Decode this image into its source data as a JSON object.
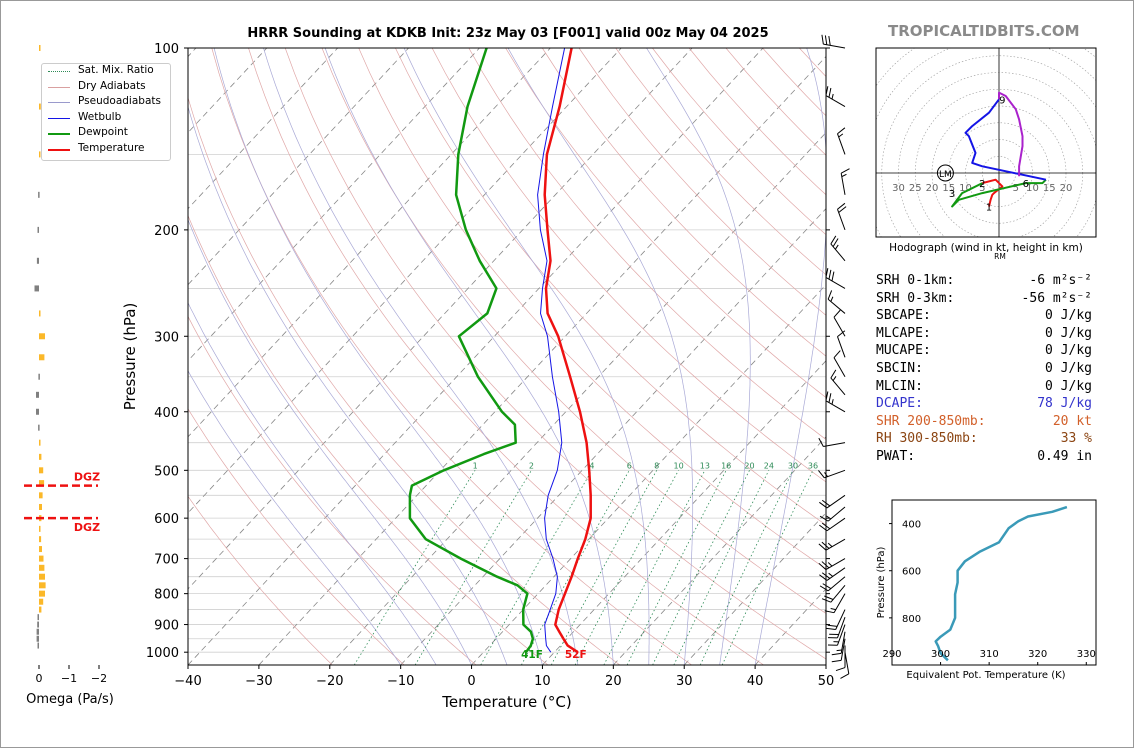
{
  "title": "HRRR Sounding at KDKB Init: 23z May 03 [F001] valid 00z May 04 2025",
  "brand": "TROPICALTIDBITS.COM",
  "legend": [
    {
      "label": "Sat. Mix. Ratio",
      "color": "#2e8b57",
      "style": "dotted"
    },
    {
      "label": "Dry Adiabats",
      "color": "#d9a0a0",
      "style": "solid"
    },
    {
      "label": "Pseudoadiabats",
      "color": "#9a9acc",
      "style": "solid"
    },
    {
      "label": "Wetbulb",
      "color": "#1414e6",
      "style": "solid"
    },
    {
      "label": "Dewpoint",
      "color": "#119911",
      "style": "solid"
    },
    {
      "label": "Temperature",
      "color": "#ee1111",
      "style": "solid"
    }
  ],
  "chart_data": [
    {
      "type": "line",
      "name": "skew-t",
      "xlabel": "Temperature (°C)",
      "ylabel": "Pressure (hPa)",
      "xlim": [
        -40,
        50
      ],
      "ylim": [
        1050,
        100
      ],
      "y_scale": "log",
      "x_ticks": [
        -40,
        -30,
        -20,
        -10,
        0,
        10,
        20,
        30,
        40,
        50
      ],
      "x_tick_labels": [
        "−40",
        "−30",
        "−20",
        "−10",
        "0",
        "10",
        "20",
        "30",
        "40",
        "50"
      ],
      "y_ticks": [
        1000,
        900,
        800,
        700,
        600,
        500,
        400,
        300,
        200,
        100
      ],
      "mixing_ratio_labels": [
        "1",
        "2",
        "4",
        "6",
        "8",
        "10",
        "13",
        "16",
        "20",
        "24",
        "30",
        "36"
      ],
      "surface_labels": {
        "dewpoint": "41F",
        "temperature": "52F"
      },
      "series": [
        {
          "name": "Temperature",
          "color": "#ee1111",
          "points": [
            [
              1000,
              13.3
            ],
            [
              975,
              11.0
            ],
            [
              950,
              9.5
            ],
            [
              925,
              8.0
            ],
            [
              900,
              6.5
            ],
            [
              850,
              5.0
            ],
            [
              800,
              3.8
            ],
            [
              750,
              2.5
            ],
            [
              700,
              1.0
            ],
            [
              650,
              -0.5
            ],
            [
              600,
              -2.5
            ],
            [
              550,
              -5.5
            ],
            [
              500,
              -9.0
            ],
            [
              450,
              -13.0
            ],
            [
              400,
              -18.0
            ],
            [
              350,
              -24.0
            ],
            [
              300,
              -31.0
            ],
            [
              275,
              -35.5
            ],
            [
              250,
              -39.0
            ],
            [
              225,
              -42.0
            ],
            [
              200,
              -46.5
            ],
            [
              175,
              -51.5
            ],
            [
              150,
              -56.5
            ],
            [
              125,
              -61.0
            ],
            [
              100,
              -67.0
            ]
          ]
        },
        {
          "name": "Dewpoint",
          "color": "#119911",
          "points": [
            [
              1000,
              6.0
            ],
            [
              975,
              5.8
            ],
            [
              950,
              5.2
            ],
            [
              925,
              4.0
            ],
            [
              900,
              2.0
            ],
            [
              850,
              0.0
            ],
            [
              800,
              -1.5
            ],
            [
              775,
              -4.0
            ],
            [
              750,
              -8.0
            ],
            [
              700,
              -15.5
            ],
            [
              650,
              -23.0
            ],
            [
              600,
              -28.0
            ],
            [
              550,
              -31.0
            ],
            [
              530,
              -32.0
            ],
            [
              500,
              -29.5
            ],
            [
              470,
              -26.0
            ],
            [
              450,
              -23.0
            ],
            [
              420,
              -25.5
            ],
            [
              400,
              -29.0
            ],
            [
              350,
              -37.0
            ],
            [
              300,
              -45.0
            ],
            [
              275,
              -44.0
            ],
            [
              250,
              -46.0
            ],
            [
              225,
              -52.0
            ],
            [
              200,
              -58.0
            ],
            [
              175,
              -64.0
            ],
            [
              150,
              -69.0
            ],
            [
              125,
              -74.0
            ],
            [
              100,
              -79.0
            ]
          ]
        },
        {
          "name": "Wetbulb",
          "color": "#1414e6",
          "points": [
            [
              1000,
              9.5
            ],
            [
              975,
              8.0
            ],
            [
              950,
              7.0
            ],
            [
              900,
              5.0
            ],
            [
              850,
              3.8
            ],
            [
              800,
              2.5
            ],
            [
              750,
              0.5
            ],
            [
              700,
              -2.5
            ],
            [
              650,
              -6.0
            ],
            [
              600,
              -9.0
            ],
            [
              550,
              -11.5
            ],
            [
              500,
              -13.5
            ],
            [
              450,
              -16.5
            ],
            [
              400,
              -21.0
            ],
            [
              350,
              -26.5
            ],
            [
              300,
              -32.5
            ],
            [
              275,
              -36.5
            ],
            [
              250,
              -39.5
            ],
            [
              225,
              -42.5
            ],
            [
              200,
              -47.5
            ],
            [
              175,
              -52.5
            ],
            [
              150,
              -57.0
            ],
            [
              125,
              -62.0
            ],
            [
              100,
              -68.0
            ]
          ]
        }
      ],
      "wind_barbs": [
        {
          "p": 1000,
          "spd": 10,
          "dir": 170
        },
        {
          "p": 975,
          "spd": 10,
          "dir": 180
        },
        {
          "p": 950,
          "spd": 10,
          "dir": 190
        },
        {
          "p": 925,
          "spd": 15,
          "dir": 190
        },
        {
          "p": 900,
          "spd": 15,
          "dir": 200
        },
        {
          "p": 875,
          "spd": 20,
          "dir": 200
        },
        {
          "p": 850,
          "spd": 20,
          "dir": 205
        },
        {
          "p": 800,
          "spd": 15,
          "dir": 210
        },
        {
          "p": 775,
          "spd": 20,
          "dir": 220
        },
        {
          "p": 750,
          "spd": 20,
          "dir": 230
        },
        {
          "p": 725,
          "spd": 25,
          "dir": 235
        },
        {
          "p": 700,
          "spd": 25,
          "dir": 240
        },
        {
          "p": 650,
          "spd": 25,
          "dir": 240
        },
        {
          "p": 600,
          "spd": 20,
          "dir": 235
        },
        {
          "p": 575,
          "spd": 15,
          "dir": 230
        },
        {
          "p": 550,
          "spd": 20,
          "dir": 235
        },
        {
          "p": 500,
          "spd": 15,
          "dir": 250
        },
        {
          "p": 450,
          "spd": 10,
          "dir": 260
        },
        {
          "p": 400,
          "spd": 25,
          "dir": 300
        },
        {
          "p": 375,
          "spd": 15,
          "dir": 320
        },
        {
          "p": 350,
          "spd": 10,
          "dir": 330
        },
        {
          "p": 325,
          "spd": 10,
          "dir": 340
        },
        {
          "p": 300,
          "spd": 10,
          "dir": 330
        },
        {
          "p": 275,
          "spd": 15,
          "dir": 310
        },
        {
          "p": 250,
          "spd": 30,
          "dir": 300
        },
        {
          "p": 225,
          "spd": 25,
          "dir": 320
        },
        {
          "p": 200,
          "spd": 20,
          "dir": 340
        },
        {
          "p": 175,
          "spd": 15,
          "dir": 350
        },
        {
          "p": 150,
          "spd": 15,
          "dir": 340
        },
        {
          "p": 125,
          "spd": 25,
          "dir": 300
        },
        {
          "p": 100,
          "spd": 30,
          "dir": 280
        }
      ]
    },
    {
      "type": "line",
      "name": "hodograph",
      "xlabel": "Hodograph (wind in kt, height in km)",
      "ring_labels_left": [
        "30",
        "25",
        "20",
        "15",
        "10",
        "5"
      ],
      "ring_labels_right": [
        "5",
        "10",
        "15",
        "20"
      ],
      "height_labels": [
        "1",
        "2",
        "3",
        "6",
        "9"
      ],
      "storm_motion_labels": [
        "LM",
        "RM"
      ],
      "series": [
        {
          "name": "0-1km",
          "color": "#ee1111",
          "points": [
            [
              -3,
              -10
            ],
            [
              -2.5,
              -8
            ],
            [
              -2,
              -6.5
            ],
            [
              -1.5,
              -6
            ],
            [
              1,
              -4
            ],
            [
              -1,
              -2
            ],
            [
              -5,
              -3
            ]
          ]
        },
        {
          "name": "1-3km",
          "color": "#119911",
          "points": [
            [
              -5,
              -3
            ],
            [
              -9,
              -5
            ],
            [
              -11,
              -6
            ],
            [
              -14,
              -10
            ],
            [
              -12,
              -8
            ],
            [
              -5,
              -6
            ],
            [
              8,
              -3
            ],
            [
              13,
              -3
            ],
            [
              14,
              -2
            ]
          ]
        },
        {
          "name": "3-6km",
          "color": "#1414e6",
          "points": [
            [
              14,
              -2
            ],
            [
              -5,
              2
            ],
            [
              -8,
              3
            ],
            [
              -7,
              6
            ],
            [
              -9,
              11
            ],
            [
              -10,
              12
            ],
            [
              -8,
              14
            ],
            [
              -3,
              18
            ],
            [
              0,
              22
            ]
          ]
        },
        {
          "name": "6-9km",
          "color": "#aa22cc",
          "points": [
            [
              0,
              22
            ],
            [
              0,
              24
            ],
            [
              2,
              23
            ],
            [
              5,
              19
            ],
            [
              6,
              16
            ],
            [
              7,
              11
            ],
            [
              7,
              8
            ],
            [
              6,
              2
            ],
            [
              6,
              -1
            ]
          ]
        }
      ]
    },
    {
      "type": "line",
      "name": "theta-e",
      "xlabel": "Equivalent Pot. Temperature (K)",
      "ylabel": "Pressure (hPa)",
      "xlim": [
        290,
        332
      ],
      "ylim": [
        1000,
        300
      ],
      "x_ticks": [
        290,
        300,
        310,
        320,
        330
      ],
      "y_ticks": [
        400,
        600,
        800
      ],
      "series": [
        {
          "name": "theta-e",
          "color": "#3a9ab8",
          "points": [
            [
              980,
              301.5
            ],
            [
              950,
              300
            ],
            [
              920,
              299.5
            ],
            [
              900,
              299
            ],
            [
              880,
              300
            ],
            [
              850,
              302
            ],
            [
              800,
              303
            ],
            [
              750,
              303
            ],
            [
              700,
              303
            ],
            [
              650,
              303.5
            ],
            [
              600,
              303.5
            ],
            [
              560,
              305
            ],
            [
              520,
              308
            ],
            [
              480,
              312
            ],
            [
              450,
              313
            ],
            [
              420,
              314
            ],
            [
              390,
              316
            ],
            [
              370,
              318
            ],
            [
              350,
              323
            ],
            [
              330,
              326
            ]
          ]
        }
      ]
    },
    {
      "type": "bar",
      "name": "omega",
      "xlabel": "Omega (Pa/s)",
      "x_ticks": [
        0,
        -1,
        -2
      ],
      "x_tick_labels": [
        "0",
        "−1",
        "−2"
      ],
      "dgz_label": "DGZ",
      "dgz_bounds": [
        530,
        600
      ],
      "values": [
        [
          975,
          0.05
        ],
        [
          950,
          0.08
        ],
        [
          925,
          0.08
        ],
        [
          900,
          0.06
        ],
        [
          875,
          0.05
        ],
        [
          850,
          -0.08
        ],
        [
          825,
          -0.14
        ],
        [
          800,
          -0.2
        ],
        [
          775,
          -0.22
        ],
        [
          750,
          -0.2
        ],
        [
          725,
          -0.18
        ],
        [
          700,
          -0.15
        ],
        [
          675,
          -0.1
        ],
        [
          650,
          -0.07
        ],
        [
          625,
          -0.05
        ],
        [
          600,
          -0.08
        ],
        [
          575,
          -0.1
        ],
        [
          550,
          -0.12
        ],
        [
          525,
          -0.17
        ],
        [
          500,
          -0.14
        ],
        [
          475,
          -0.08
        ],
        [
          450,
          -0.02
        ],
        [
          425,
          0.03
        ],
        [
          400,
          0.1
        ],
        [
          375,
          0.1
        ],
        [
          350,
          0.02
        ],
        [
          325,
          -0.18
        ],
        [
          300,
          -0.2
        ],
        [
          275,
          -0.02
        ],
        [
          250,
          0.15
        ],
        [
          225,
          0.07
        ],
        [
          200,
          0.05
        ],
        [
          175,
          0.03
        ],
        [
          150,
          -0.02
        ],
        [
          125,
          -0.06
        ],
        [
          100,
          -0.03
        ]
      ]
    }
  ],
  "params": [
    {
      "label": "SRH 0-1km:",
      "value": "-6 m²s⁻²",
      "color": "#000000"
    },
    {
      "label": "SRH 0-3km:",
      "value": "-56 m²s⁻²",
      "color": "#000000"
    },
    {
      "label": "SBCAPE:",
      "value": "0 J/kg",
      "color": "#000000"
    },
    {
      "label": "MLCAPE:",
      "value": "0 J/kg",
      "color": "#000000"
    },
    {
      "label": "MUCAPE:",
      "value": "0 J/kg",
      "color": "#000000"
    },
    {
      "label": "SBCIN:",
      "value": "0 J/kg",
      "color": "#000000"
    },
    {
      "label": "MLCIN:",
      "value": "0 J/kg",
      "color": "#000000"
    },
    {
      "label": "DCAPE:",
      "value": "78 J/kg",
      "color": "#3333cc"
    },
    {
      "label": "SHR 200-850mb:",
      "value": "20 kt",
      "color": "#d2602a"
    },
    {
      "label": "RH 300-850mb:",
      "value": "33 %",
      "color": "#8b4513"
    },
    {
      "label": "PWAT:",
      "value": "0.49 in",
      "color": "#000000"
    }
  ]
}
